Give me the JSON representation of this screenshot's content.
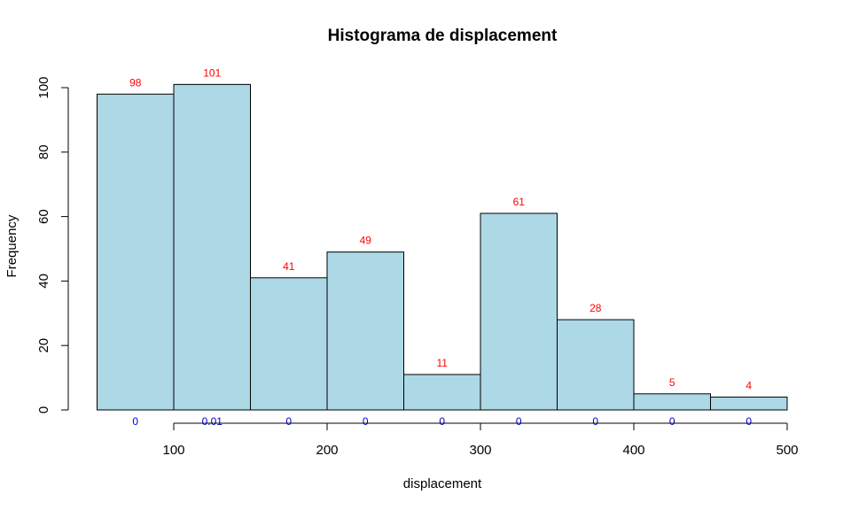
{
  "chart_data": {
    "type": "bar",
    "title": "Histograma de displacement",
    "xlabel": "displacement",
    "ylabel": "Frequency",
    "bins": [
      [
        50,
        100
      ],
      [
        100,
        150
      ],
      [
        150,
        200
      ],
      [
        200,
        250
      ],
      [
        250,
        300
      ],
      [
        300,
        350
      ],
      [
        350,
        400
      ],
      [
        400,
        450
      ],
      [
        450,
        500
      ]
    ],
    "values": [
      98,
      101,
      41,
      49,
      11,
      61,
      28,
      5,
      4
    ],
    "count_labels": [
      "98",
      "101",
      "41",
      "49",
      "11",
      "61",
      "28",
      "5",
      "4"
    ],
    "density_labels": [
      "0",
      "0.01",
      "0",
      "0",
      "0",
      "0",
      "0",
      "0",
      "0"
    ],
    "xlim": [
      50,
      500
    ],
    "ylim": [
      0,
      103
    ],
    "x_ticks": [
      100,
      200,
      300,
      400,
      500
    ],
    "y_ticks": [
      0,
      20,
      40,
      60,
      80,
      100
    ],
    "grid": false,
    "colors": {
      "bar_fill": "#add8e6",
      "count_label": "#ff0000",
      "density_label": "#0000cd"
    }
  }
}
